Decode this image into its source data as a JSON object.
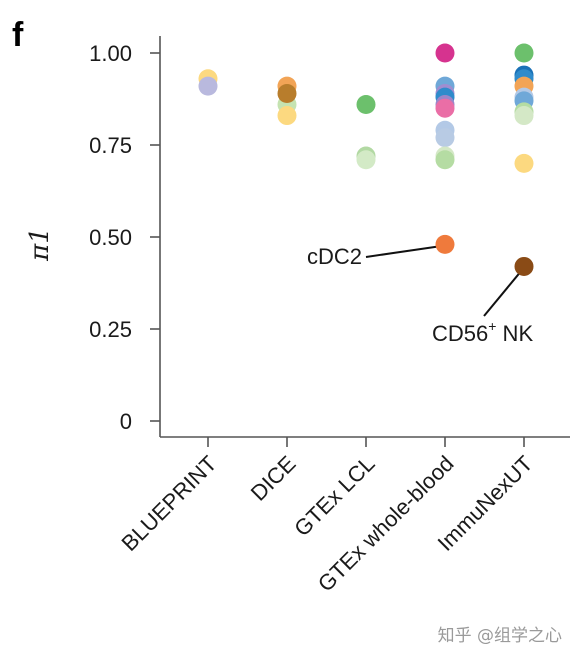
{
  "panel_label": "f",
  "watermark": "知乎 @组学之心",
  "chart_data": {
    "type": "scatter",
    "title": "",
    "xlabel": "",
    "ylabel": "π1",
    "ylim": [
      0,
      1.0
    ],
    "yticks": [
      0,
      0.25,
      0.5,
      0.75,
      1.0
    ],
    "ytick_labels": [
      "0",
      "0.25",
      "0.50",
      "0.75",
      "1.00"
    ],
    "grid": false,
    "categories": [
      "BLUEPRINT",
      "DICE",
      "GTEx LCL",
      "GTEx whole-blood",
      "ImmuNexUT"
    ],
    "points": [
      {
        "x": "BLUEPRINT",
        "y": 0.93,
        "color": "#fcd980"
      },
      {
        "x": "BLUEPRINT",
        "y": 0.91,
        "color": "#b9b9de"
      },
      {
        "x": "DICE",
        "y": 0.91,
        "color": "#f2a456"
      },
      {
        "x": "DICE",
        "y": 0.86,
        "color": "#c5e3b1"
      },
      {
        "x": "DICE",
        "y": 0.83,
        "color": "#fcd980"
      },
      {
        "x": "DICE",
        "y": 0.89,
        "color": "#b87d2c"
      },
      {
        "x": "GTEx LCL",
        "y": 0.86,
        "color": "#6cc06c"
      },
      {
        "x": "GTEx LCL",
        "y": 0.72,
        "color": "#b2d9a3"
      },
      {
        "x": "GTEx LCL",
        "y": 0.71,
        "color": "#d3eac6"
      },
      {
        "x": "GTEx whole-blood",
        "y": 1.0,
        "color": "#d6338f"
      },
      {
        "x": "GTEx whole-blood",
        "y": 0.91,
        "color": "#6fa8d8"
      },
      {
        "x": "GTEx whole-blood",
        "y": 0.89,
        "color": "#a08dd0"
      },
      {
        "x": "GTEx whole-blood",
        "y": 0.88,
        "color": "#2f8bcb"
      },
      {
        "x": "GTEx whole-blood",
        "y": 0.86,
        "color": "#9b86c9"
      },
      {
        "x": "GTEx whole-blood",
        "y": 0.85,
        "color": "#ea6ea6"
      },
      {
        "x": "GTEx whole-blood",
        "y": 0.79,
        "color": "#b3c9e6"
      },
      {
        "x": "GTEx whole-blood",
        "y": 0.77,
        "color": "#b8cbe4"
      },
      {
        "x": "GTEx whole-blood",
        "y": 0.72,
        "color": "#d4e8c6"
      },
      {
        "x": "GTEx whole-blood",
        "y": 0.71,
        "color": "#b5dca3"
      },
      {
        "x": "GTEx whole-blood",
        "y": 0.48,
        "color": "#ef7a3c",
        "label": "cDC2"
      },
      {
        "x": "ImmuNexUT",
        "y": 1.0,
        "color": "#6cc06c"
      },
      {
        "x": "ImmuNexUT",
        "y": 0.94,
        "color": "#1b72b7"
      },
      {
        "x": "ImmuNexUT",
        "y": 0.93,
        "color": "#2f8bcb"
      },
      {
        "x": "ImmuNexUT",
        "y": 0.91,
        "color": "#f2a456"
      },
      {
        "x": "ImmuNexUT",
        "y": 0.88,
        "color": "#b3c9e6"
      },
      {
        "x": "ImmuNexUT",
        "y": 0.87,
        "color": "#6fa8d8"
      },
      {
        "x": "ImmuNexUT",
        "y": 0.84,
        "color": "#b5dca3"
      },
      {
        "x": "ImmuNexUT",
        "y": 0.83,
        "color": "#d4e8c6"
      },
      {
        "x": "ImmuNexUT",
        "y": 0.7,
        "color": "#fcd980"
      },
      {
        "x": "ImmuNexUT",
        "y": 0.42,
        "color": "#8a4b16",
        "label": "CD56⁺ NK"
      }
    ],
    "annotations": [
      {
        "text": "cDC2",
        "category": "GTEx whole-blood",
        "y": 0.48
      },
      {
        "text": "CD56",
        "superscript": "+",
        "suffix": " NK",
        "category": "ImmuNexUT",
        "y": 0.42
      }
    ]
  }
}
